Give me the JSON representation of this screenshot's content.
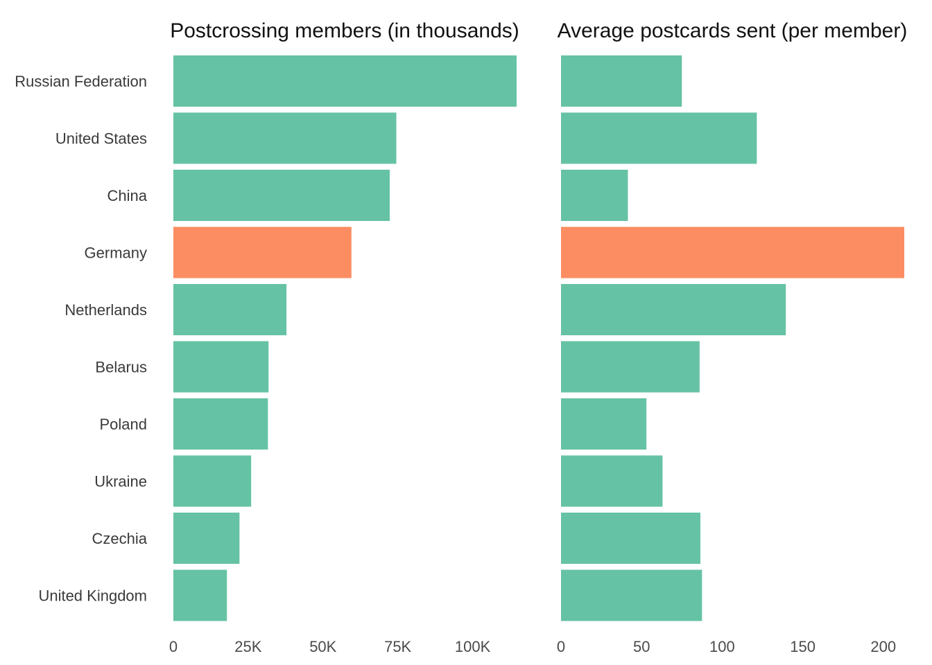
{
  "colors": {
    "default": "#66c2a5",
    "highlight": "#fc8d62"
  },
  "chart_data": [
    {
      "type": "bar",
      "orientation": "horizontal",
      "title": "Postcrossing members (in thousands)",
      "categories": [
        "Russian Federation",
        "United States",
        "China",
        "Germany",
        "Netherlands",
        "Belarus",
        "Poland",
        "Ukraine",
        "Czechia",
        "United Kingdom"
      ],
      "values": [
        114700,
        74500,
        72300,
        59500,
        37800,
        31800,
        31600,
        26000,
        22100,
        17900
      ],
      "highlight": [
        "Germany"
      ],
      "xlim": [
        0,
        114700
      ],
      "ticks": [
        0,
        25000,
        50000,
        75000,
        100000
      ],
      "tick_labels": [
        "0",
        "25K",
        "50K",
        "75K",
        "100K"
      ],
      "grid": false
    },
    {
      "type": "bar",
      "orientation": "horizontal",
      "title": "Average postcards sent (per member)",
      "categories": [
        "Russian Federation",
        "United States",
        "China",
        "Germany",
        "Netherlands",
        "Belarus",
        "Poland",
        "Ukraine",
        "Czechia",
        "United Kingdom"
      ],
      "values": [
        75,
        121.5,
        41.5,
        213,
        139.5,
        86,
        53,
        63,
        86.5,
        87.5
      ],
      "highlight": [
        "Germany"
      ],
      "xlim": [
        0,
        213
      ],
      "ticks": [
        0,
        50,
        100,
        150,
        200
      ],
      "tick_labels": [
        "0",
        "50",
        "100",
        "150",
        "200"
      ],
      "grid": false
    }
  ]
}
